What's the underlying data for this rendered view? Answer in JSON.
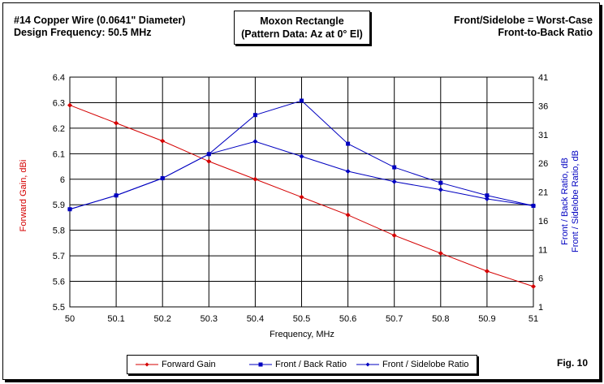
{
  "header": {
    "left_line1": "#14 Copper Wire (0.0641\" Diameter)",
    "left_line2": "Design Frequency:  50.5 MHz",
    "title_line1": "Moxon Rectangle",
    "title_line2": "(Pattern Data: Az at 0° El)",
    "right_line1": "Front/Sidelobe = Worst-Case",
    "right_line2": "Front-to-Back Ratio"
  },
  "figure_label": "Fig. 10",
  "chart_data": {
    "type": "line",
    "xlabel": "Frequency, MHz",
    "ylabel_left": "Forward Gain, dBi",
    "ylabel_right_line1": "Front / Back Ratio, dB",
    "ylabel_right_line2": "Front / Sidelobe Ratio, dB",
    "x": [
      50,
      50.1,
      50.2,
      50.3,
      50.4,
      50.5,
      50.6,
      50.7,
      50.8,
      50.9,
      51
    ],
    "x_tick_labels": [
      "50",
      "50.1",
      "50.2",
      "50.3",
      "50.4",
      "50.5",
      "50.6",
      "50.7",
      "50.8",
      "50.9",
      "51"
    ],
    "xlim": [
      50,
      51
    ],
    "ylim_left": [
      5.5,
      6.4
    ],
    "y_ticks_left": [
      "5.5",
      "5.6",
      "5.7",
      "5.8",
      "5.9",
      "6",
      "6.1",
      "6.2",
      "6.3",
      "6.4"
    ],
    "ylim_right": [
      1,
      41
    ],
    "y_ticks_right": [
      "1",
      "6",
      "11",
      "16",
      "21",
      "26",
      "31",
      "36",
      "41"
    ],
    "grid": true,
    "legend_position": "bottom",
    "series": [
      {
        "name": "Forward Gain",
        "axis": "left",
        "color": "#d40000",
        "marker": "diamond",
        "values": [
          6.29,
          6.22,
          6.15,
          6.07,
          6.0,
          5.93,
          5.86,
          5.78,
          5.71,
          5.64,
          5.58
        ]
      },
      {
        "name": "Front / Back Ratio",
        "axis": "right",
        "color": "#0000c0",
        "marker": "square",
        "values": [
          18.0,
          20.4,
          23.4,
          27.6,
          34.4,
          36.9,
          29.4,
          25.3,
          22.6,
          20.4,
          18.6
        ]
      },
      {
        "name": "Front / Sidelobe Ratio",
        "axis": "right",
        "color": "#0000c0",
        "marker": "diamond",
        "values": [
          18.0,
          20.4,
          23.4,
          27.6,
          29.8,
          27.2,
          24.6,
          22.8,
          21.4,
          19.8,
          18.6
        ]
      }
    ]
  }
}
